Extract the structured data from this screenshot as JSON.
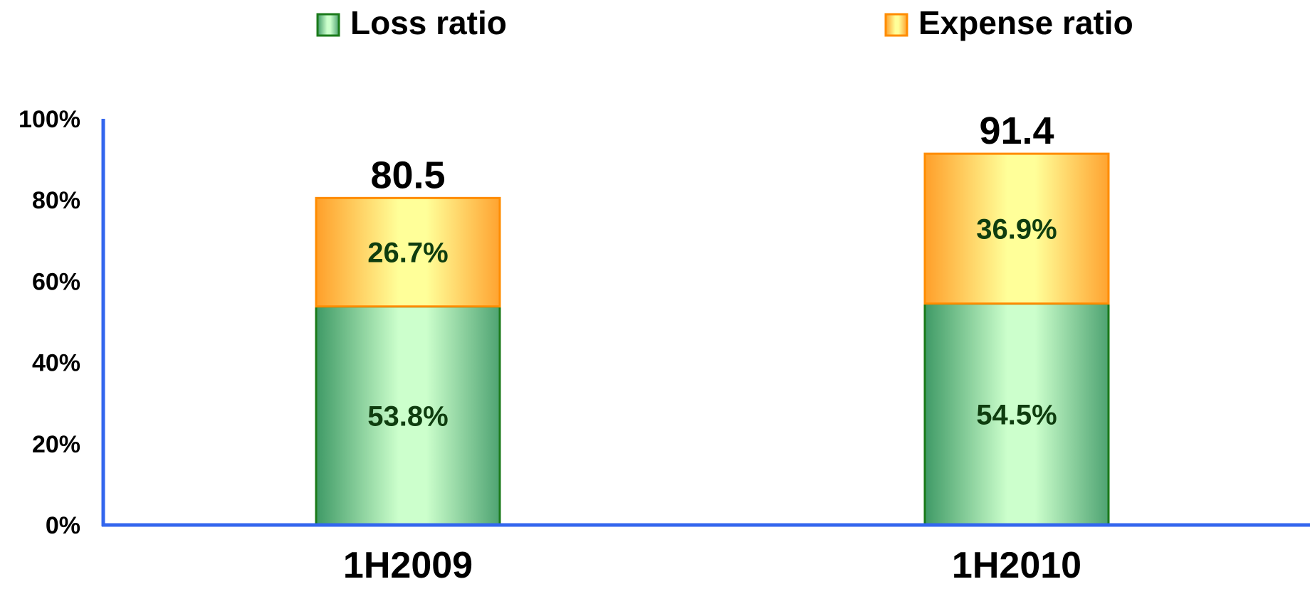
{
  "chart_data": {
    "type": "bar",
    "stacked": true,
    "categories": [
      "1H2009",
      "1H2010"
    ],
    "series": [
      {
        "name": "Loss ratio",
        "values": [
          53.8,
          54.5
        ],
        "labels": [
          "53.8%",
          "54.5%"
        ],
        "color": "#2e8b57",
        "border": "#1a7a1a"
      },
      {
        "name": "Expense ratio",
        "values": [
          26.7,
          36.9
        ],
        "labels": [
          "26.7%",
          "36.9%"
        ],
        "color": "#ffa020",
        "border": "#ff8c00"
      }
    ],
    "totals": [
      "80.5",
      "91.4"
    ],
    "ylim": [
      0,
      100
    ],
    "yticks": [
      0,
      20,
      40,
      60,
      80,
      100
    ],
    "ytick_labels": [
      "0%",
      "20%",
      "40%",
      "60%",
      "80%",
      "100%"
    ],
    "axis_color": "#3366ee",
    "legend_position": "top",
    "grid": false
  }
}
